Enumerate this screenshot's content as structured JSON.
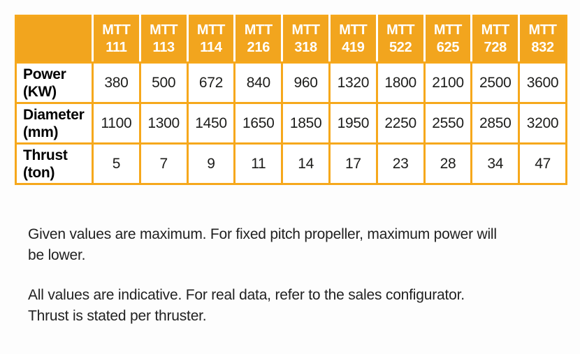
{
  "colors": {
    "header_fill": "#F2A51E",
    "grid_border": "#F6A81C",
    "header_text": "#FFFFFF",
    "cell_text": "#1D1D1B"
  },
  "table": {
    "corner_label": "",
    "columns": [
      {
        "prefix": "MTT",
        "number": "111"
      },
      {
        "prefix": "MTT",
        "number": "113"
      },
      {
        "prefix": "MTT",
        "number": "114"
      },
      {
        "prefix": "MTT",
        "number": "216"
      },
      {
        "prefix": "MTT",
        "number": "318"
      },
      {
        "prefix": "MTT",
        "number": "419"
      },
      {
        "prefix": "MTT",
        "number": "522"
      },
      {
        "prefix": "MTT",
        "number": "625"
      },
      {
        "prefix": "MTT",
        "number": "728"
      },
      {
        "prefix": "MTT",
        "number": "832"
      }
    ],
    "rows": [
      {
        "label": "Power",
        "unit": "(KW)",
        "values": [
          "380",
          "500",
          "672",
          "840",
          "960",
          "1320",
          "1800",
          "2100",
          "2500",
          "3600"
        ]
      },
      {
        "label": "Diameter",
        "unit": "(mm)",
        "values": [
          "1100",
          "1300",
          "1450",
          "1650",
          "1850",
          "1950",
          "2250",
          "2550",
          "2850",
          "3200"
        ]
      },
      {
        "label": "Thrust",
        "unit": "(ton)",
        "values": [
          "5",
          "7",
          "9",
          "11",
          "14",
          "17",
          "23",
          "28",
          "34",
          "47"
        ]
      }
    ]
  },
  "notes": [
    {
      "lines": [
        "Given values are maximum. For fixed pitch propeller, maximum power will",
        "be lower."
      ]
    },
    {
      "lines": [
        "All values are indicative. For real data, refer to the sales configurator.",
        "Thrust is stated per thruster."
      ]
    }
  ],
  "chart_data": {
    "type": "table",
    "categories": [
      "MTT 111",
      "MTT 113",
      "MTT 114",
      "MTT 216",
      "MTT 318",
      "MTT 419",
      "MTT 522",
      "MTT 625",
      "MTT 728",
      "MTT 832"
    ],
    "series": [
      {
        "name": "Power (KW)",
        "values": [
          380,
          500,
          672,
          840,
          960,
          1320,
          1800,
          2100,
          2500,
          3600
        ]
      },
      {
        "name": "Diameter (mm)",
        "values": [
          1100,
          1300,
          1450,
          1650,
          1850,
          1950,
          2250,
          2550,
          2850,
          3200
        ]
      },
      {
        "name": "Thrust (ton)",
        "values": [
          5,
          7,
          9,
          11,
          14,
          17,
          23,
          28,
          34,
          47
        ]
      }
    ]
  }
}
